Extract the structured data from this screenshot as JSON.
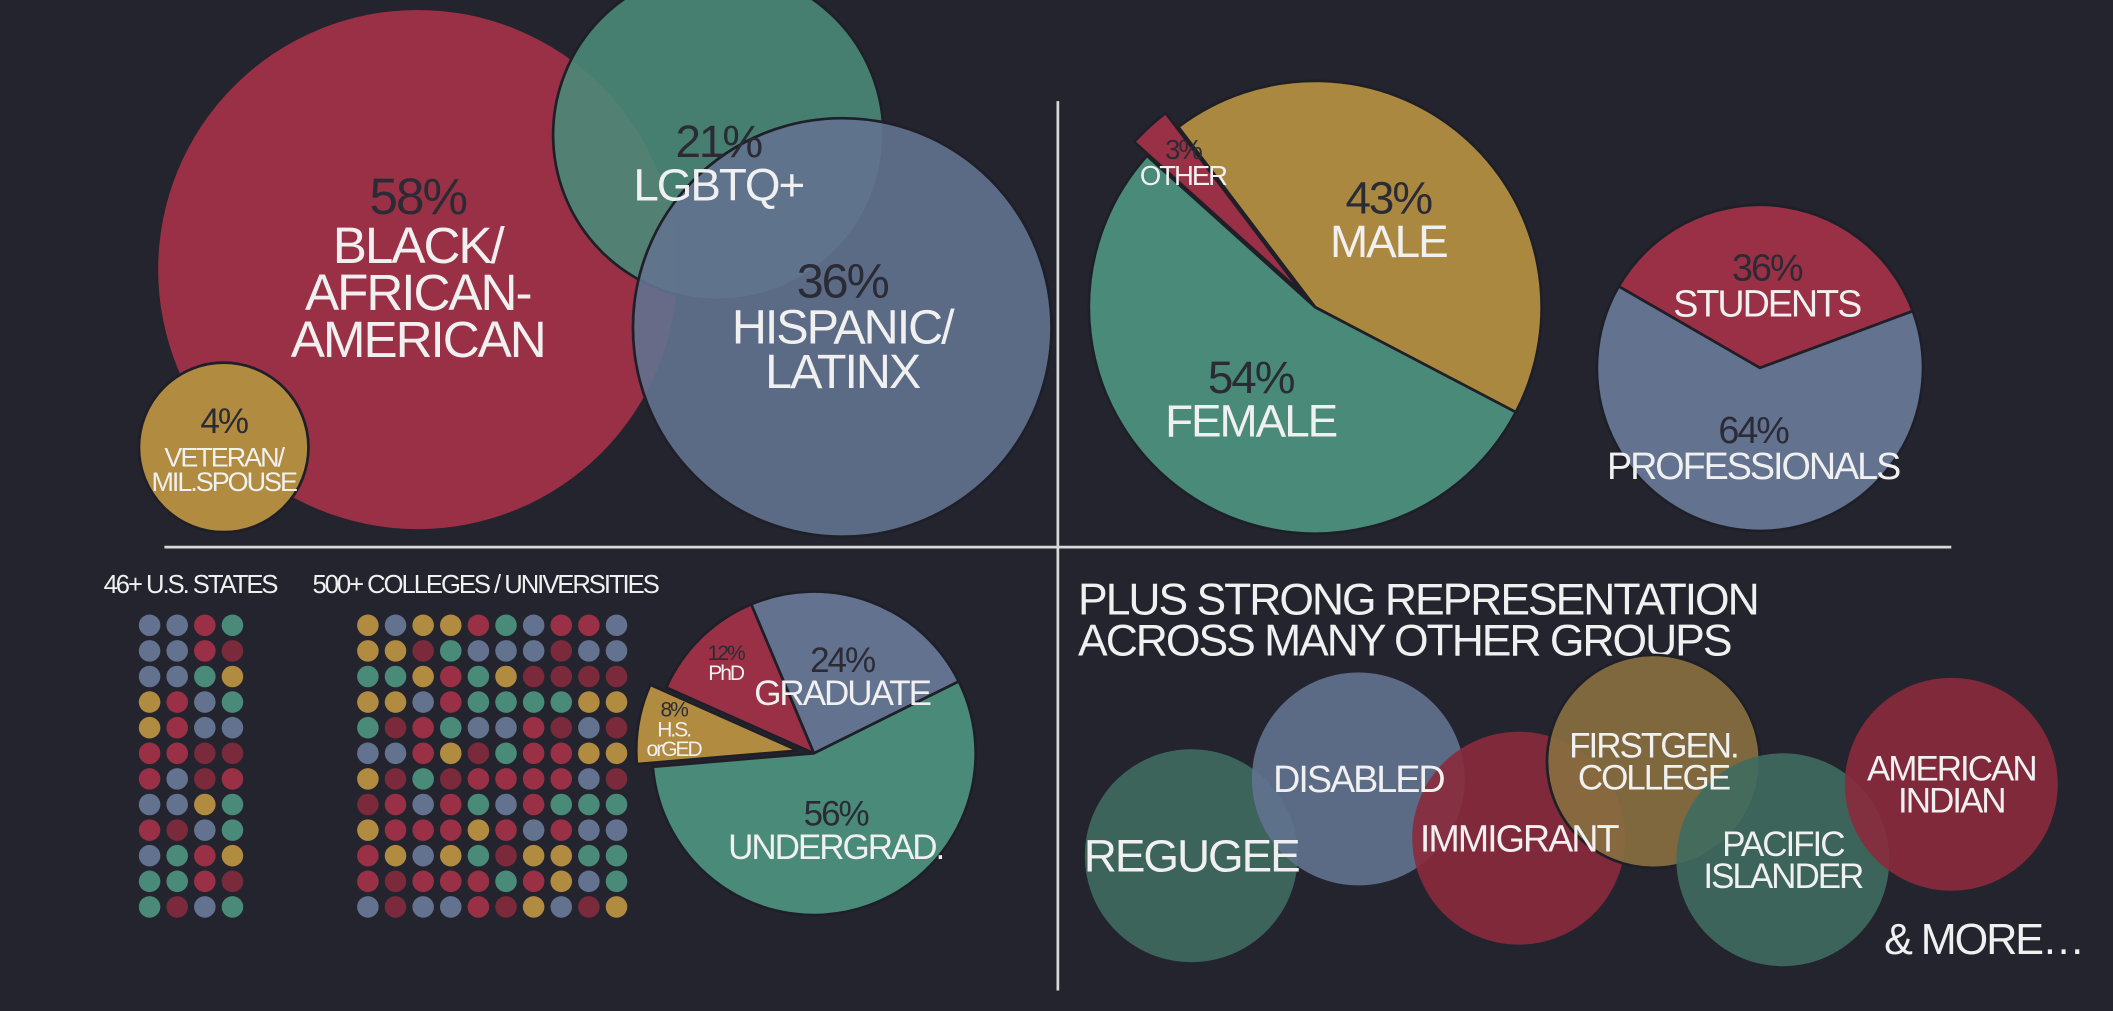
{
  "chart_data": [
    {
      "type": "bubble",
      "categories": [
        "BLACK/\nAFRICAN-\nAMERICAN",
        "LGBTQ+",
        "HISPANIC/\nLATINX",
        "VETERAN/\nMIL.SPOUSE"
      ],
      "values": [
        58,
        21,
        36,
        4
      ],
      "value_labels": [
        "58%",
        "21%",
        "36%",
        "4%"
      ],
      "colors": [
        "#9a3045",
        "#4a8a78",
        "#62728f",
        "#b08b40"
      ]
    },
    {
      "type": "pie",
      "categories": [
        "OTHER",
        "MALE",
        "FEMALE"
      ],
      "values": [
        3,
        43,
        54
      ],
      "value_labels": [
        "3%",
        "43%",
        "54%"
      ],
      "colors": [
        "#9a3045",
        "#ab8840",
        "#4a8a78"
      ]
    },
    {
      "type": "pie",
      "categories": [
        "STUDENTS",
        "PROFESSIONALS"
      ],
      "values": [
        36,
        64
      ],
      "value_labels": [
        "36%",
        "64%"
      ],
      "colors": [
        "#9a3045",
        "#62728f"
      ]
    },
    {
      "type": "pie",
      "categories": [
        "PhD",
        "GRADUATE",
        "UNDERGRAD.",
        "H.S.\norGED"
      ],
      "values": [
        12,
        24,
        56,
        8
      ],
      "value_labels": [
        "12%",
        "24%",
        "56%",
        "8%"
      ],
      "colors": [
        "#9a3045",
        "#62728f",
        "#4a8a78",
        "#b08b40"
      ]
    }
  ],
  "dot_labels": [
    "46+ U.S. STATES",
    "500+ COLLEGES / UNIVERSITIES"
  ],
  "other_groups": {
    "title": "PLUS STRONG REPRESENTATION\nACROSS MANY OTHER GROUPS",
    "groups": [
      "REGUGEE",
      "DISABLED",
      "IMMIGRANT",
      "FIRSTGEN.\nCOLLEGE",
      "PACIFIC\nISLANDER",
      "AMERICAN\nINDIAN"
    ],
    "more": "& MORE…"
  }
}
